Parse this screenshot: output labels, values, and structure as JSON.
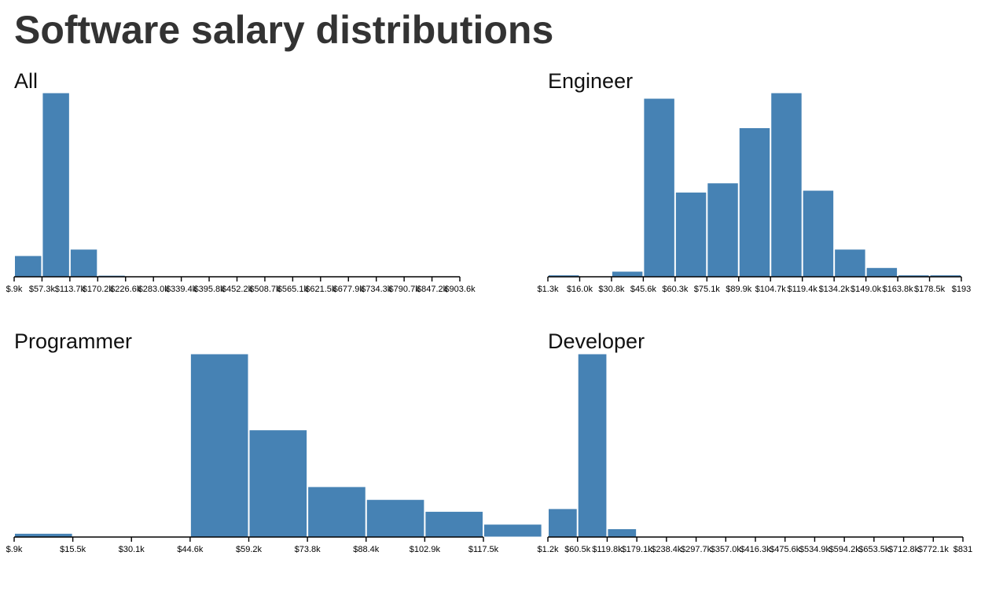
{
  "page": {
    "title": "Software salary distributions"
  },
  "colors": {
    "bar": "#4682b4",
    "axis": "#000000"
  },
  "chart_data": [
    {
      "id": "all",
      "type": "bar",
      "title": "All",
      "tick_labels": [
        "$.9k",
        "$57.3k",
        "$113.7k",
        "$170.2k",
        "$226.6k",
        "$283.0k",
        "$339.4k",
        "$395.8k",
        "$452.2k",
        "$508.7k",
        "$565.1k",
        "$621.5k",
        "$677.9k",
        "$734.3k",
        "$790.7k",
        "$847.2k",
        "$903.6k"
      ],
      "values": [
        0.115,
        1.0,
        0.15,
        0.008,
        0.002,
        0,
        0,
        0,
        0,
        0,
        0,
        0,
        0,
        0,
        0,
        0
      ],
      "bar_start_tick": 0,
      "ylim": [
        0,
        1
      ]
    },
    {
      "id": "engineer",
      "type": "bar",
      "title": "Engineer",
      "tick_labels": [
        "$1.3k",
        "$16.0k",
        "$30.8k",
        "$45.6k",
        "$60.3k",
        "$75.1k",
        "$89.9k",
        "$104.7k",
        "$119.4k",
        "$134.2k",
        "$149.0k",
        "$163.8k",
        "$178.5k",
        "$193"
      ],
      "values": [
        0.01,
        0.0,
        0.03,
        0.97,
        0.46,
        0.51,
        0.81,
        1.0,
        0.47,
        0.15,
        0.05,
        0.01,
        0.01
      ],
      "bar_start_tick": 0,
      "ylim": [
        0,
        1
      ]
    },
    {
      "id": "programmer",
      "type": "bar",
      "title": "Programmer",
      "tick_labels": [
        "$.9k",
        "$15.5k",
        "$30.1k",
        "$44.6k",
        "$59.2k",
        "$73.8k",
        "$88.4k",
        "$102.9k",
        "$117.5k"
      ],
      "values": [
        0.02,
        0.0,
        0.0,
        1.0,
        0.585,
        0.275,
        0.205,
        0.14,
        0.07
      ],
      "bar_start_tick": 0,
      "ylim": [
        0,
        1
      ]
    },
    {
      "id": "developer",
      "type": "bar",
      "title": "Developer",
      "tick_labels": [
        "$1.2k",
        "$60.5k",
        "$119.8k",
        "$179.1k",
        "$238.4k",
        "$297.7k",
        "$357.0k",
        "$416.3k",
        "$475.6k",
        "$534.9k",
        "$594.2k",
        "$653.5k",
        "$712.8k",
        "$772.1k",
        "$831"
      ],
      "values": [
        0.155,
        1.0,
        0.045,
        0,
        0,
        0,
        0,
        0,
        0,
        0,
        0,
        0,
        0,
        0
      ],
      "bar_start_tick": 0,
      "ylim": [
        0,
        1
      ]
    }
  ]
}
